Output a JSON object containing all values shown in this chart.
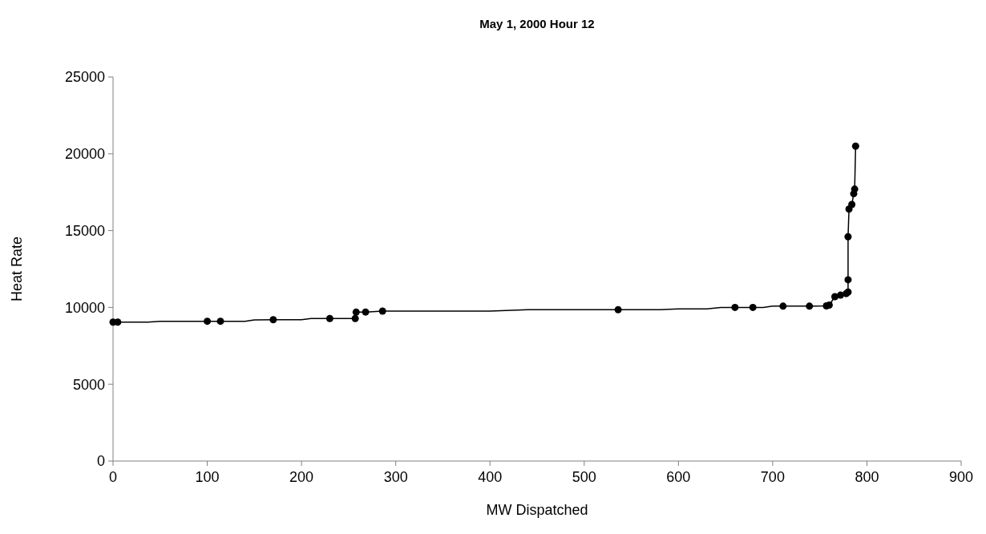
{
  "chart_data": {
    "type": "scatter",
    "title": "May 1, 2000 Hour 12",
    "xlabel": "MW Dispatched",
    "ylabel": "Heat Rate",
    "xlim": [
      0,
      900
    ],
    "xticks": [
      0,
      100,
      200,
      300,
      400,
      500,
      600,
      700,
      800,
      900
    ],
    "ylim": [
      0,
      25000
    ],
    "yticks": [
      0,
      5000,
      10000,
      15000,
      20000,
      25000
    ],
    "grid": false,
    "series": [
      {
        "type": "line",
        "color": "#000000",
        "marker": "none",
        "line_style": "solid",
        "x": [
          0,
          5,
          37,
          50,
          100,
          114,
          140,
          150,
          170,
          200,
          210,
          230,
          257,
          258,
          268,
          286,
          400,
          440,
          536,
          580,
          600,
          630,
          645,
          660,
          679,
          690,
          700,
          711,
          739,
          757,
          760,
          766,
          772,
          778,
          780,
          780,
          780,
          781,
          784,
          786,
          787,
          788
        ],
        "values": [
          9040,
          9040,
          9040,
          9100,
          9100,
          9100,
          9100,
          9180,
          9200,
          9200,
          9280,
          9280,
          9280,
          9690,
          9700,
          9760,
          9760,
          9850,
          9850,
          9850,
          9900,
          9900,
          10000,
          10000,
          10000,
          10000,
          10080,
          10080,
          10080,
          10100,
          10150,
          10700,
          10800,
          10900,
          11000,
          11800,
          14600,
          16400,
          16700,
          17400,
          17700,
          20500
        ]
      },
      {
        "color": "#000000",
        "marker": "circle",
        "x": [
          0,
          5,
          100,
          114,
          170,
          230,
          257,
          258,
          268,
          286,
          536,
          660,
          679,
          711,
          739,
          757,
          760,
          766,
          772,
          778,
          780,
          780,
          780,
          781,
          784,
          786,
          787,
          788
        ],
        "values": [
          9040,
          9040,
          9100,
          9100,
          9200,
          9280,
          9280,
          9690,
          9700,
          9760,
          9850,
          10000,
          10000,
          10080,
          10080,
          10100,
          10150,
          10700,
          10800,
          10900,
          11000,
          11800,
          14600,
          16400,
          16700,
          17400,
          17700,
          20500
        ]
      }
    ]
  }
}
